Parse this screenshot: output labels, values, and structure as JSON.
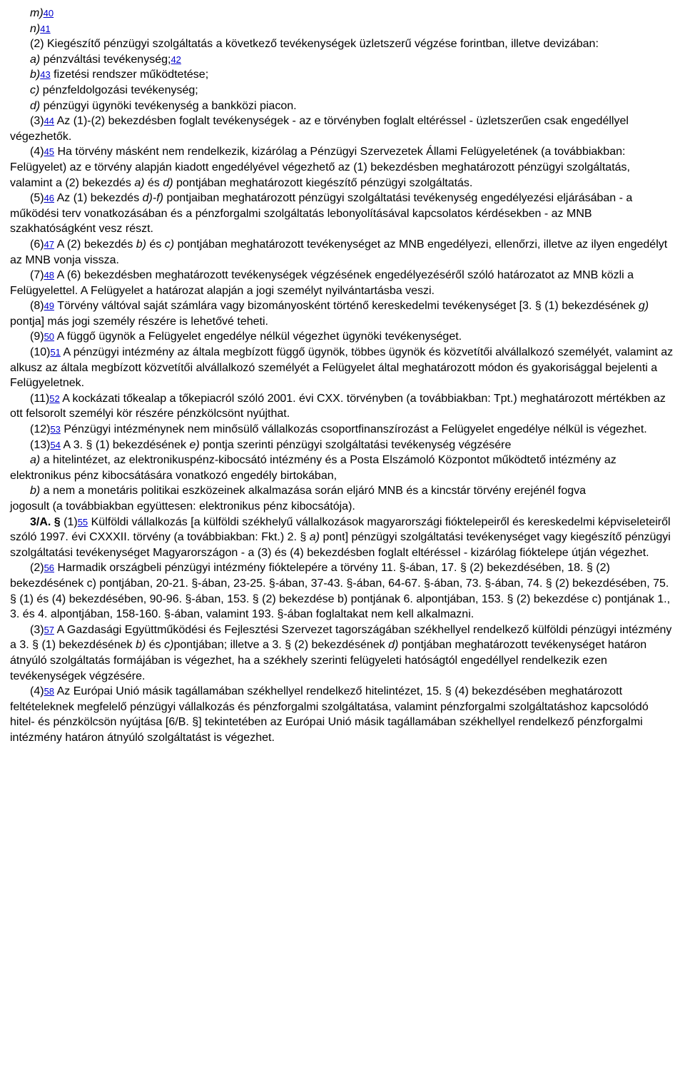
{
  "doc": {
    "ln0": {
      "pre": "m)",
      "fn": "40"
    },
    "ln1": {
      "pre": "n)",
      "fn": "41"
    },
    "ln2": "(2) Kiegészítő pénzügyi szolgáltatás a következő tevékenységek üzletszerű végzése forintban, illetve devizában:",
    "ln3": {
      "a": "a) ",
      "b": "pénzváltási tevékenység;",
      "fn": "42"
    },
    "ln4": {
      "a": "b)",
      "fn": "43",
      "b": " fizetési rendszer működtetése;"
    },
    "ln5": {
      "a": "c) ",
      "b": "pénzfeldolgozási tevékenység;"
    },
    "ln6": {
      "a": "d) ",
      "b": "pénzügyi ügynöki tevékenység a bankközi piacon."
    },
    "ln7": {
      "a": "(3)",
      "fn": "44",
      "b": " Az (1)-(2) bekezdésben foglalt tevékenységek - az e törvényben foglalt eltéréssel - üzletszerűen csak engedéllyel végezhetők."
    },
    "ln8": {
      "a": "(4)",
      "fn": "45",
      "b": " Ha törvény másként nem rendelkezik, kizárólag a Pénzügyi Szervezetek Állami Felügyeletének (a továbbiakban: Felügyelet) az e törvény alapján kiadott engedélyével végezhető az (1) bekezdésben meghatározott pénzügyi szolgáltatás, valamint a (2) bekezdés ",
      "c": "a) ",
      "d": "és ",
      "e": "d) ",
      "f": "pontjában meghatározott kiegészítő pénzügyi szolgáltatás."
    },
    "ln9": {
      "a": "(5)",
      "fn": "46",
      "b": " Az (1) bekezdés ",
      "c": "d)-f) ",
      "d": "pontjaiban meghatározott pénzügyi szolgáltatási tevékenység engedélyezési eljárásában - a működési terv vonatkozásában és a pénzforgalmi szolgáltatás lebonyolításával kapcsolatos kérdésekben - az MNB szakhatóságként vesz részt."
    },
    "ln10": {
      "a": "(6)",
      "fn": "47",
      "b": " A (2) bekezdés ",
      "c": "b) ",
      "d": "és ",
      "e": "c) ",
      "f": "pontjában meghatározott tevékenységet az MNB engedélyezi, ellenőrzi, illetve az ilyen engedélyt az MNB vonja vissza."
    },
    "ln11": {
      "a": "(7)",
      "fn": "48",
      "b": " A (6) bekezdésben meghatározott tevékenységek végzésének engedélyezéséről szóló határozatot az MNB közli a Felügyelettel. A Felügyelet a határozat alapján a jogi személyt nyilvántartásba veszi."
    },
    "ln12": {
      "a": "(8)",
      "fn": "49",
      "b": " Törvény váltóval saját számlára vagy bizományosként történő kereskedelmi tevékenységet [3. § (1) bekezdésének ",
      "c": "g) ",
      "d": "pontja] más jogi személy részére is lehetővé teheti."
    },
    "ln13": {
      "a": "(9)",
      "fn": "50",
      "b": " A függő ügynök a Felügyelet engedélye nélkül végezhet ügynöki tevékenységet."
    },
    "ln14": {
      "a": "(10)",
      "fn": "51",
      "b": " A pénzügyi intézmény az általa megbízott függő ügynök, többes ügynök és közvetítői alvállalkozó személyét, valamint az alkusz az általa megbízott közvetítői alvállalkozó személyét a Felügyelet által meghatározott módon és gyakorisággal bejelenti a Felügyeletnek."
    },
    "ln15": {
      "a": "(11)",
      "fn": "52",
      "b": " A kockázati tőkealap a tőkepiacról szóló 2001. évi CXX. törvényben (a továbbiakban: Tpt.) meghatározott mértékben az ott felsorolt személyi kör részére pénzkölcsönt nyújthat."
    },
    "ln16": {
      "a": "(12)",
      "fn": "53",
      "b": " Pénzügyi intézménynek nem minősülő vállalkozás csoportfinanszírozást a Felügyelet engedélye nélkül is végezhet."
    },
    "ln17": {
      "a": "(13)",
      "fn": "54",
      "b": " A 3. § (1) bekezdésének ",
      "c": "e) ",
      "d": "pontja szerinti pénzügyi szolgáltatási tevékenység végzésére"
    },
    "ln18": {
      "a": "a) ",
      "b": "a hitelintézet, az elektronikuspénz-kibocsátó intézmény és a Posta Elszámoló Központot működtető intézmény az elektronikus pénz kibocsátására vonatkozó engedély birtokában,"
    },
    "ln19": {
      "a": "b) ",
      "b": "a nem a monetáris politikai eszközeinek alkalmazása során eljáró MNB és a kincstár törvény erejénél fogva"
    },
    "ln20": "jogosult (a továbbiakban együttesen: elektronikus pénz kibocsátója).",
    "ln21": {
      "a": "3/A. § ",
      "b": "(1)",
      "fn": "55",
      "c": " Külföldi vállalkozás [a külföldi székhelyű vállalkozások magyarországi fióktelepeiről és kereskedelmi képviseleteiről szóló 1997. évi CXXXII. törvény (a továbbiakban: Fkt.) 2. § ",
      "d": "a) ",
      "e": "pont] pénzügyi szolgáltatási tevékenységet vagy kiegészítő pénzügyi szolgáltatási tevékenységet Magyarországon - a (3) és (4) bekezdésben foglalt eltéréssel - kizárólag fióktelepe útján végezhet."
    },
    "ln22": {
      "a": "(2)",
      "fn": "56",
      "b": " Harmadik országbeli pénzügyi intézmény fióktelepére a törvény 11. §-ában, 17. § (2) bekezdésében, 18. § (2) bekezdésének c) pontjában, 20-21. §-ában, 23-25. §-ában, 37-43. §-ában, 64-67. §-ában, 73. §-ában, 74. § (2) bekezdésében, 75. § (1) és (4) bekezdésében, 90-96. §-ában, 153. § (2) bekezdése b) pontjának 6. alpontjában, 153. § (2) bekezdése c) pontjának 1., 3. és 4. alpontjában, 158-160. §-ában, valamint 193. §-ában foglaltakat nem kell alkalmazni."
    },
    "ln23": {
      "a": "(3)",
      "fn": "57",
      "b": " A Gazdasági Együttműködési és Fejlesztési Szervezet tagországában székhellyel rendelkező külföldi pénzügyi intézmény a 3. § (1) bekezdésének ",
      "c": "b) ",
      "d": "és ",
      "e": "c)",
      "f": "pontjában; illetve a 3. § (2) bekezdésének ",
      "g": "d) ",
      "h": "pontjában meghatározott tevékenységet határon átnyúló szolgáltatás formájában is végezhet, ha a székhely szerinti felügyeleti hatóságtól engedéllyel rendelkezik ezen tevékenységek végzésére."
    },
    "ln24": {
      "a": "(4)",
      "fn": "58",
      "b": " Az Európai Unió másik tagállamában székhellyel rendelkező hitelintézet, 15. § (4) bekezdésében meghatározott feltételeknek megfelelő pénzügyi vállalkozás és pénzforgalmi szolgáltatása, valamint pénzforgalmi szolgáltatáshoz kapcsolódó hitel- és pénzkölcsön nyújtása [6/B. §] tekintetében az Európai Unió másik tagállamában székhellyel rendelkező pénzforgalmi intézmény határon átnyúló szolgáltatást is végezhet."
    }
  }
}
